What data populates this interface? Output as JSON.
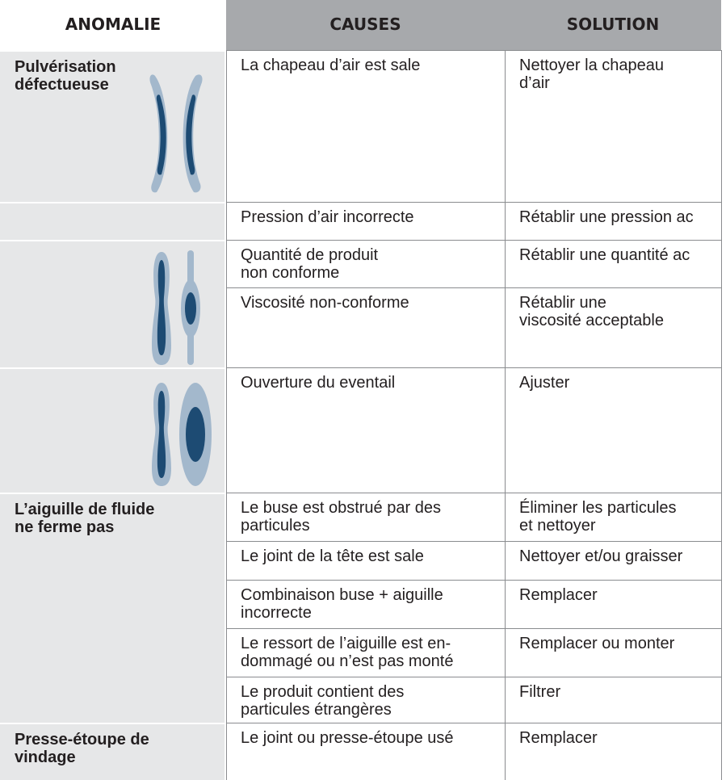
{
  "table": {
    "header": [
      "ANOMALIE",
      "CAUSES",
      "SOLUTION"
    ],
    "anomalies": [
      "Pulvérisation\ndéfectueuse",
      "L’aiguille de fluide\nne ferme pas",
      "Presse-étoupe de\nvindage"
    ],
    "rows": [
      [
        "La chapeau d’air est sale",
        "Nettoyer la chapeau\nd’air"
      ],
      [
        "Pression d’air incorrecte",
        "Rétablir une pression ac"
      ],
      [
        "Quantité de produit\nnon conforme",
        "Rétablir une quantité ac"
      ],
      [
        "Viscosité non-conforme",
        "Rétablir une\nviscosité acceptable"
      ],
      [
        "Ouverture du eventail",
        "Ajuster"
      ],
      [
        "Le buse est obstrué par des\nparticules",
        "Éliminer les particules\net nettoyer"
      ],
      [
        "Le joint de la tête est sale",
        "Nettoyer et/ou graisser"
      ],
      [
        "Combinaison buse + aiguille\nincorrecte",
        "Remplacer"
      ],
      [
        "Le ressort de l’aiguille est en-\ndommagé ou n’est pas monté",
        "Remplacer ou monter"
      ],
      [
        "Le produit contient des\nparticules étrangères",
        "Filtrer"
      ],
      [
        "Le joint ou presse-étoupe usé",
        "Remplacer"
      ]
    ]
  }
}
